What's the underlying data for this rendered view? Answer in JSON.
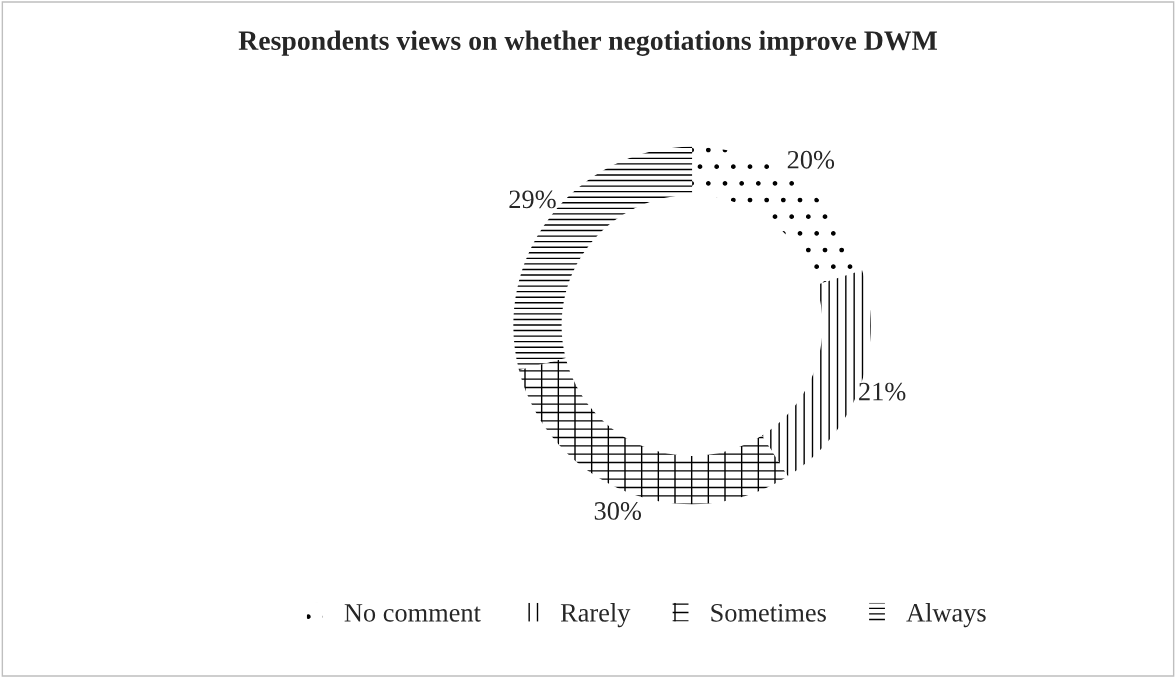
{
  "chart_data": {
    "type": "donut",
    "title": "Respondents views on whether negotiations improve DWM",
    "categories": [
      "No comment",
      "Rarely",
      "Sometimes",
      "Always"
    ],
    "values": [
      20,
      21,
      30,
      29
    ],
    "colors": [
      "#000000",
      "#000000",
      "#000000",
      "#000000"
    ],
    "value_labels": [
      "20%",
      "21%",
      "30%",
      "29%"
    ],
    "legend": "bottom"
  }
}
